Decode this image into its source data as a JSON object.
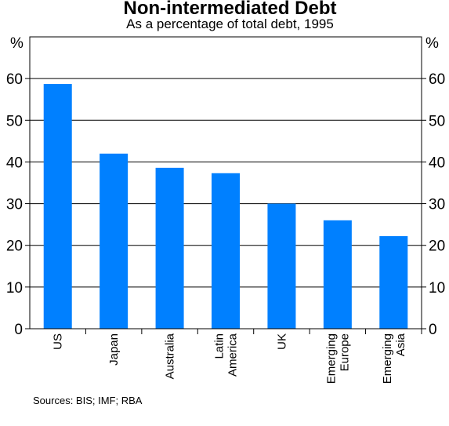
{
  "chart_data": {
    "type": "bar",
    "title": "Non-intermediated Debt",
    "subtitle": "As a percentage of total debt, 1995",
    "ylabel_left": "%",
    "ylabel_right": "%",
    "ylim": [
      0,
      70
    ],
    "yticks": [
      0,
      10,
      20,
      30,
      40,
      50,
      60
    ],
    "grid": true,
    "categories": [
      [
        "US"
      ],
      [
        "Japan"
      ],
      [
        "Australia"
      ],
      [
        "Latin",
        "America"
      ],
      [
        "UK"
      ],
      [
        "Emerging",
        "Europe"
      ],
      [
        "Emerging",
        "Asia"
      ]
    ],
    "values": [
      58.7,
      42.0,
      38.6,
      37.3,
      30.0,
      26.0,
      22.2
    ],
    "bar_color": "#0080ff"
  },
  "source_note": "Sources: BIS; IMF; RBA"
}
